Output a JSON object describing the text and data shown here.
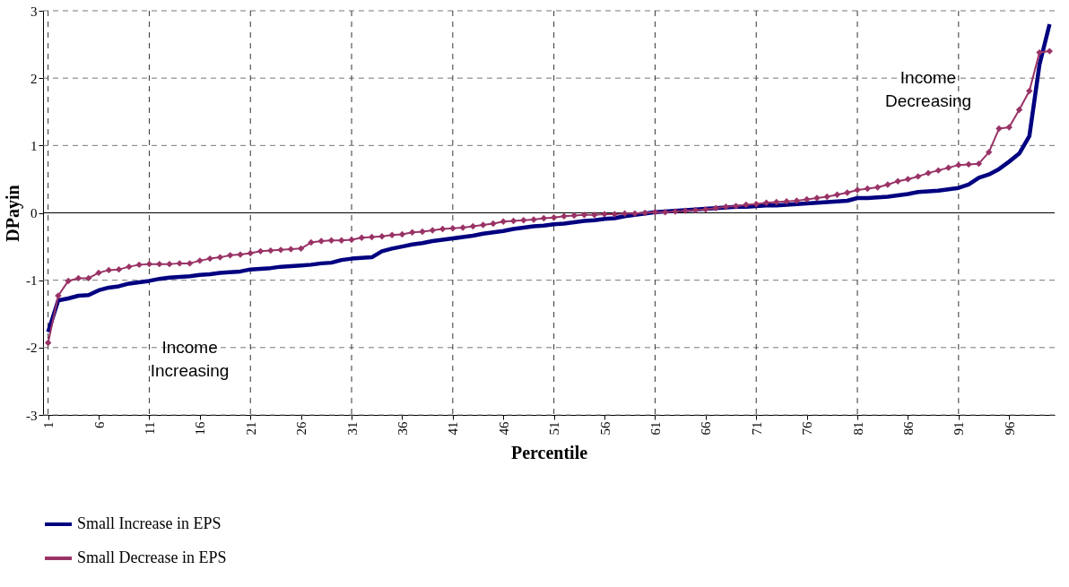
{
  "chart_data": {
    "type": "line",
    "xlabel": "Percentile",
    "ylabel": "DPayin",
    "categories": [
      "1",
      null,
      null,
      null,
      null,
      "6",
      null,
      null,
      null,
      null,
      "11",
      null,
      null,
      null,
      null,
      "16",
      null,
      null,
      null,
      null,
      "21",
      null,
      null,
      null,
      null,
      "26",
      null,
      null,
      null,
      null,
      "31",
      null,
      null,
      null,
      null,
      "36",
      null,
      null,
      null,
      null,
      "41",
      null,
      null,
      null,
      null,
      "46",
      null,
      null,
      null,
      null,
      "51",
      null,
      null,
      null,
      null,
      "56",
      null,
      null,
      null,
      null,
      "61",
      null,
      null,
      null,
      null,
      "66",
      null,
      null,
      null,
      null,
      "71",
      null,
      null,
      null,
      null,
      "76",
      null,
      null,
      null,
      null,
      "81",
      null,
      null,
      null,
      null,
      "86",
      null,
      null,
      null,
      null,
      "91",
      null,
      null,
      null,
      null,
      "96",
      null,
      null,
      null,
      null
    ],
    "series": [
      {
        "name": "Small Increase in EPS",
        "color": "#000080",
        "marker": "none",
        "values": [
          -1.77,
          -1.3,
          -1.27,
          -1.23,
          -1.22,
          -1.15,
          -1.11,
          -1.09,
          -1.05,
          -1.03,
          -1.01,
          -0.98,
          -0.96,
          -0.95,
          -0.94,
          -0.92,
          -0.91,
          -0.89,
          -0.88,
          -0.87,
          -0.84,
          -0.83,
          -0.82,
          -0.8,
          -0.79,
          -0.78,
          -0.77,
          -0.75,
          -0.74,
          -0.7,
          -0.68,
          -0.67,
          -0.66,
          -0.57,
          -0.53,
          -0.5,
          -0.47,
          -0.45,
          -0.42,
          -0.4,
          -0.38,
          -0.36,
          -0.34,
          -0.31,
          -0.29,
          -0.27,
          -0.24,
          -0.22,
          -0.2,
          -0.19,
          -0.17,
          -0.16,
          -0.14,
          -0.12,
          -0.11,
          -0.09,
          -0.08,
          -0.05,
          -0.03,
          -0.01,
          0.01,
          0.02,
          0.03,
          0.04,
          0.05,
          0.06,
          0.07,
          0.08,
          0.09,
          0.09,
          0.1,
          0.11,
          0.11,
          0.12,
          0.13,
          0.14,
          0.15,
          0.16,
          0.17,
          0.18,
          0.22,
          0.22,
          0.23,
          0.24,
          0.26,
          0.28,
          0.31,
          0.32,
          0.33,
          0.35,
          0.37,
          0.42,
          0.52,
          0.57,
          0.65,
          0.76,
          0.88,
          1.14,
          2.2,
          2.8
        ]
      },
      {
        "name": "Small Decrease in EPS",
        "color": "#993366",
        "marker": "diamond",
        "values": [
          -1.93,
          -1.23,
          -1.01,
          -0.97,
          -0.97,
          -0.89,
          -0.85,
          -0.84,
          -0.8,
          -0.77,
          -0.76,
          -0.76,
          -0.76,
          -0.75,
          -0.75,
          -0.71,
          -0.68,
          -0.66,
          -0.63,
          -0.62,
          -0.6,
          -0.57,
          -0.56,
          -0.55,
          -0.54,
          -0.53,
          -0.44,
          -0.42,
          -0.41,
          -0.41,
          -0.4,
          -0.37,
          -0.36,
          -0.35,
          -0.33,
          -0.32,
          -0.29,
          -0.28,
          -0.26,
          -0.24,
          -0.23,
          -0.22,
          -0.2,
          -0.18,
          -0.16,
          -0.13,
          -0.12,
          -0.11,
          -0.1,
          -0.08,
          -0.07,
          -0.05,
          -0.04,
          -0.03,
          -0.03,
          -0.02,
          -0.02,
          -0.01,
          -0.01,
          0.0,
          0.01,
          0.01,
          0.02,
          0.03,
          0.04,
          0.05,
          0.07,
          0.09,
          0.1,
          0.12,
          0.13,
          0.15,
          0.16,
          0.17,
          0.18,
          0.2,
          0.22,
          0.24,
          0.27,
          0.3,
          0.34,
          0.36,
          0.38,
          0.42,
          0.47,
          0.5,
          0.54,
          0.59,
          0.63,
          0.67,
          0.71,
          0.72,
          0.73,
          0.9,
          1.25,
          1.27,
          1.53,
          1.81,
          2.38,
          2.4
        ]
      }
    ],
    "ylim": [
      -3,
      3
    ],
    "yticks": [
      -3,
      -2,
      -1,
      0,
      1,
      2,
      3
    ],
    "grid": true,
    "legend": "bottom",
    "ref_lines": [
      {
        "axis": "y",
        "value": 0,
        "color": "#000000"
      }
    ],
    "annotations": [
      "Income Increasing",
      "Income Decreasing"
    ]
  }
}
